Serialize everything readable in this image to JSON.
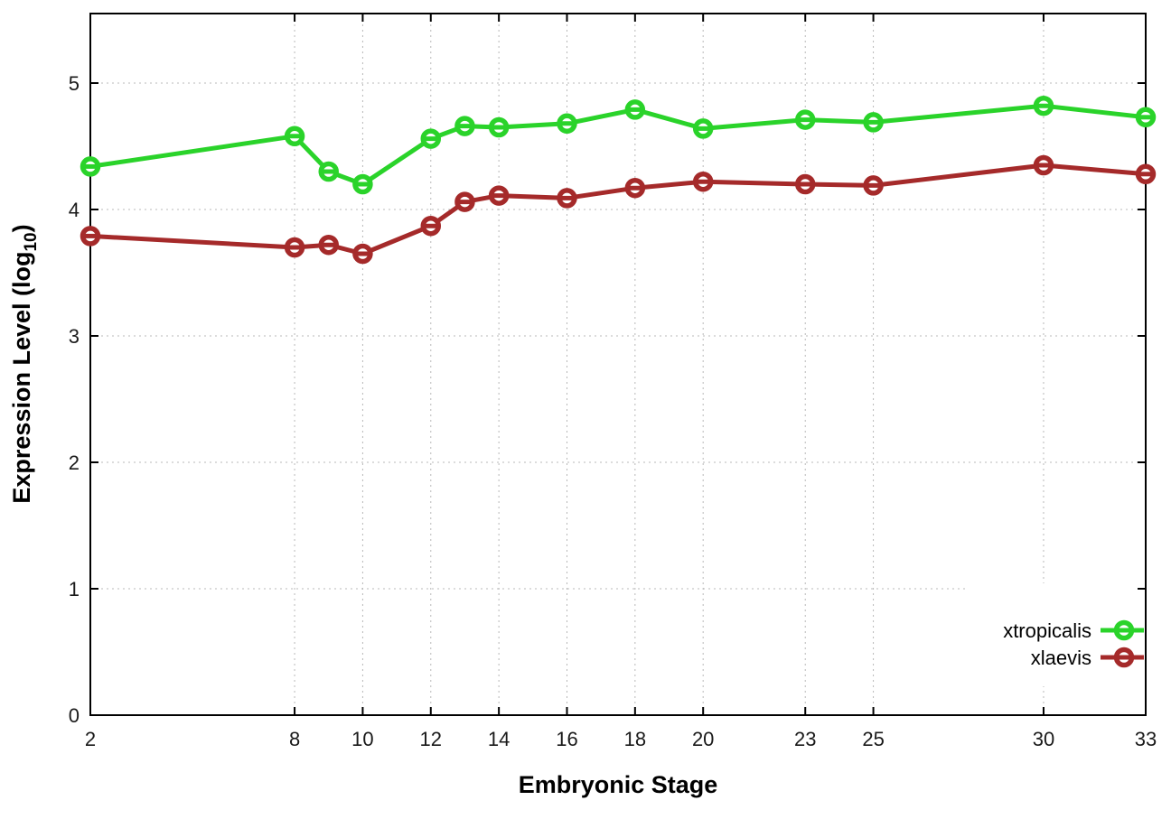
{
  "chart_data": {
    "type": "line",
    "title": "",
    "xlabel": "Embryonic Stage",
    "ylabel": "Expression Level (log10)",
    "ylabel_parts": {
      "prefix": "Expression Level (log",
      "sub": "10",
      "suffix": ")"
    },
    "x": [
      2,
      8,
      9,
      10,
      12,
      13,
      14,
      16,
      18,
      20,
      23,
      25,
      30,
      33
    ],
    "xticks": [
      2,
      8,
      10,
      12,
      14,
      16,
      18,
      20,
      23,
      25,
      30,
      33
    ],
    "yticks": [
      0,
      1,
      2,
      3,
      4,
      5
    ],
    "xlim": [
      2,
      33
    ],
    "ylim": [
      0,
      5.55
    ],
    "grid": true,
    "legend": {
      "position": "bottom-right",
      "opaque": true
    },
    "series": [
      {
        "name": "xtropicalis",
        "color": "#2ad32a",
        "marker": "open-circle-dash",
        "values": [
          4.34,
          4.58,
          4.3,
          4.2,
          4.56,
          4.66,
          4.65,
          4.68,
          4.79,
          4.64,
          4.71,
          4.69,
          4.82,
          4.73
        ]
      },
      {
        "name": "xlaevis",
        "color": "#a52a2a",
        "marker": "open-circle-dash",
        "values": [
          3.79,
          3.7,
          3.72,
          3.65,
          3.87,
          4.06,
          4.11,
          4.09,
          4.17,
          4.22,
          4.2,
          4.19,
          4.35,
          4.28
        ]
      }
    ],
    "colors": {
      "background": "#ffffff",
      "grid": "#b8b8b8",
      "axis": "#000000",
      "tick_text": "#1a1a1a"
    }
  }
}
